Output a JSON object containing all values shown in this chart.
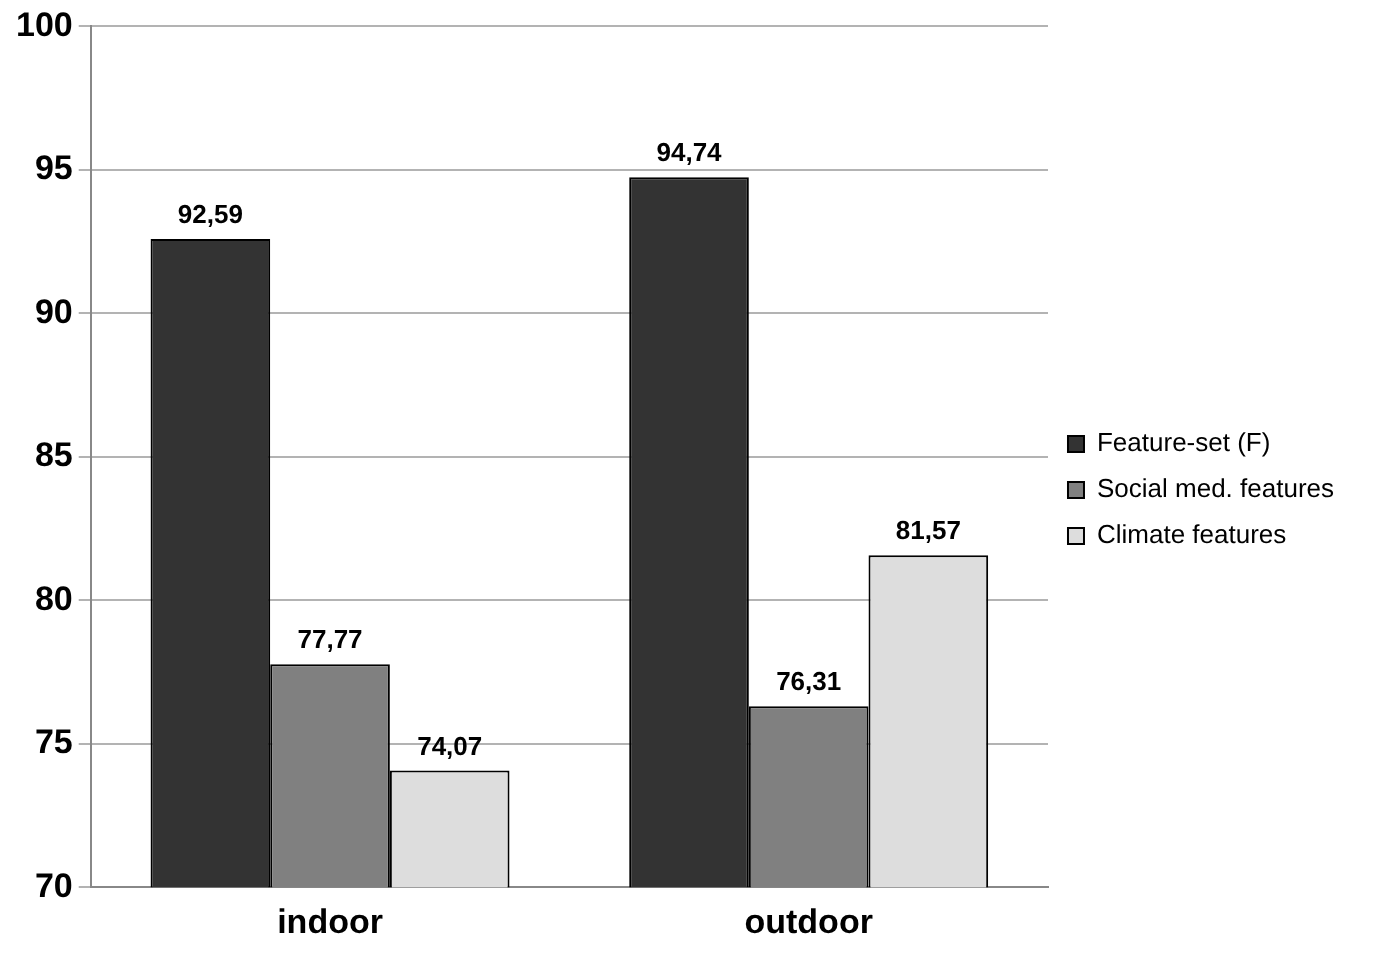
{
  "chart_data": {
    "type": "bar",
    "categories": [
      "indoor",
      "outdoor"
    ],
    "series": [
      {
        "name": "Feature-set (F)",
        "color": "#333333",
        "values": [
          92.59,
          94.74
        ],
        "value_labels": [
          "92,59",
          "94,74"
        ]
      },
      {
        "name": "Social med. features",
        "color": "#808080",
        "values": [
          77.77,
          76.31
        ],
        "value_labels": [
          "77,77",
          "76,31"
        ]
      },
      {
        "name": "Climate features",
        "color": "#dddddd",
        "values": [
          74.07,
          81.57
        ],
        "value_labels": [
          "74,07",
          "81,57"
        ]
      }
    ],
    "ylim": [
      70,
      100
    ],
    "yticks": [
      70,
      75,
      80,
      85,
      90,
      95,
      100
    ],
    "grid": "y",
    "legend": "right"
  }
}
